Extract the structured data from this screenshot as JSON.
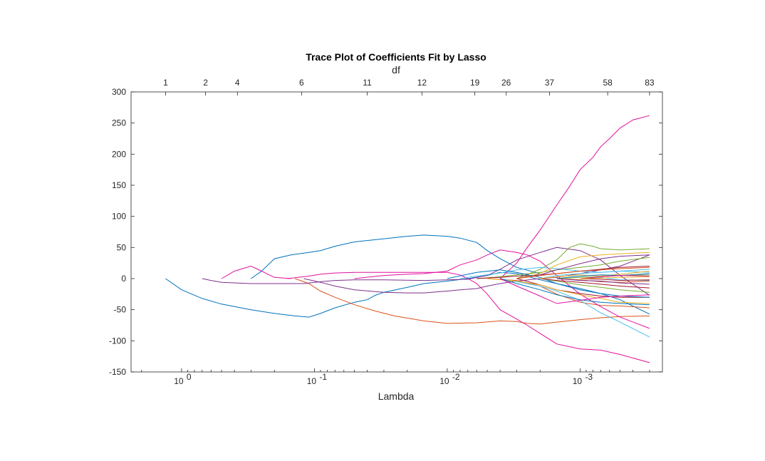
{
  "chart_data": {
    "type": "line",
    "title": "Trace Plot of Coefficients Fit by Lasso",
    "xlabel": "Lambda",
    "ylabel": "",
    "top_axis_label": "df",
    "x_scale": "log",
    "x_reversed": true,
    "xlim": [
      2.4,
      0.00024
    ],
    "ylim": [
      -150,
      300
    ],
    "grid": false,
    "legend": "none",
    "colors": {
      "blue": "#0072BD",
      "orange": "#D95319",
      "yellow": "#EDB120",
      "purple": "#7E2F8E",
      "green": "#77AC30",
      "cyan": "#4DBEEE",
      "red": "#A2142F",
      "magenta": "#E0119C"
    },
    "yticks": [
      {
        "value": 300,
        "label": "300"
      },
      {
        "value": 250,
        "label": "250"
      },
      {
        "value": 200,
        "label": "200"
      },
      {
        "value": 150,
        "label": "150"
      },
      {
        "value": 100,
        "label": "100"
      },
      {
        "value": 50,
        "label": "50"
      },
      {
        "value": 0,
        "label": "0"
      },
      {
        "value": -50,
        "label": "-50"
      },
      {
        "value": -100,
        "label": "-100"
      },
      {
        "value": -150,
        "label": "-150"
      }
    ],
    "xticks": [
      {
        "value": 1,
        "base": "10",
        "exp": "0"
      },
      {
        "value": 0.1,
        "base": "10",
        "exp": "-1"
      },
      {
        "value": 0.01,
        "base": "10",
        "exp": "-2"
      },
      {
        "value": 0.001,
        "base": "10",
        "exp": "-3"
      }
    ],
    "df_ticks": [
      {
        "lambda": 1.32,
        "label": "1"
      },
      {
        "lambda": 0.66,
        "label": "2"
      },
      {
        "lambda": 0.38,
        "label": "4"
      },
      {
        "lambda": 0.125,
        "label": "6"
      },
      {
        "lambda": 0.04,
        "label": "11"
      },
      {
        "lambda": 0.0155,
        "label": "12"
      },
      {
        "lambda": 0.0062,
        "label": "19"
      },
      {
        "lambda": 0.0036,
        "label": "26"
      },
      {
        "lambda": 0.0017,
        "label": "37"
      },
      {
        "lambda": 0.00062,
        "label": "58"
      },
      {
        "lambda": 0.0003,
        "label": "83"
      }
    ],
    "series": [
      {
        "color": "#0072BD",
        "x": [
          1.32,
          1.0,
          0.7,
          0.5,
          0.3,
          0.2,
          0.14,
          0.11,
          0.09,
          0.07,
          0.05,
          0.04,
          0.035,
          0.03,
          0.02,
          0.015,
          0.01,
          0.007,
          0.005,
          0.004,
          0.003,
          0.002,
          0.0015,
          0.001,
          0.0007,
          0.0005,
          0.0003
        ],
        "y": [
          0,
          -18,
          -32,
          -41,
          -50,
          -56,
          -60,
          -62,
          -56,
          -47,
          -38,
          -34,
          -27,
          -22,
          -14,
          -8,
          -4,
          0,
          5,
          10,
          8,
          -2,
          -8,
          -16,
          -24,
          -34,
          -57
        ]
      },
      {
        "color": "#0072BD",
        "x": [
          0.3,
          0.25,
          0.2,
          0.15,
          0.11,
          0.09,
          0.07,
          0.05,
          0.03,
          0.02,
          0.015,
          0.01,
          0.008,
          0.006,
          0.005,
          0.004,
          0.003,
          0.002
        ],
        "y": [
          0,
          12,
          32,
          38,
          42,
          45,
          52,
          59,
          64,
          68,
          70,
          68,
          65,
          58,
          45,
          32,
          18,
          8
        ]
      },
      {
        "color": "#D95319",
        "x": [
          0.14,
          0.11,
          0.09,
          0.07,
          0.05,
          0.035,
          0.025,
          0.015,
          0.01,
          0.006,
          0.004,
          0.003,
          0.0025,
          0.002,
          0.0015,
          0.001,
          0.0007,
          0.0005,
          0.0003
        ],
        "y": [
          0,
          -8,
          -20,
          -30,
          -42,
          -52,
          -60,
          -68,
          -72,
          -71,
          -68,
          -69,
          -72,
          -73,
          -70,
          -66,
          -63,
          -61,
          -60
        ]
      },
      {
        "color": "#D95319",
        "x": [
          0.005,
          0.003,
          0.002,
          0.0015,
          0.001,
          0.0007,
          0.0005,
          0.0003
        ],
        "y": [
          0,
          -3,
          -12,
          -25,
          -38,
          -43,
          -44,
          -47
        ]
      },
      {
        "color": "#E0119C",
        "x": [
          0.004,
          0.003,
          0.0025,
          0.002,
          0.0015,
          0.0012,
          0.001,
          0.0008,
          0.0007,
          0.0006,
          0.0005,
          0.0004,
          0.0003
        ],
        "y": [
          0,
          25,
          50,
          78,
          118,
          148,
          175,
          195,
          212,
          225,
          242,
          255,
          262
        ]
      },
      {
        "color": "#E0119C",
        "x": [
          0.16,
          0.11,
          0.09,
          0.07,
          0.05,
          0.03,
          0.02,
          0.015,
          0.01,
          0.008,
          0.007,
          0.006,
          0.005,
          0.004,
          0.003,
          0.0025,
          0.002,
          0.0015,
          0.001,
          0.0007,
          0.0005,
          0.0003
        ],
        "y": [
          0,
          4,
          7,
          9,
          10,
          10,
          10,
          10,
          10,
          6,
          0,
          -8,
          -25,
          -50,
          -65,
          -75,
          -88,
          -105,
          -113,
          -115,
          -122,
          -135
        ]
      },
      {
        "color": "#E0119C",
        "x": [
          0.5,
          0.4,
          0.3,
          0.25,
          0.2,
          0.15
        ],
        "y": [
          0,
          12,
          20,
          12,
          2,
          0
        ]
      },
      {
        "color": "#E0119C",
        "x": [
          0.05,
          0.03,
          0.02,
          0.015,
          0.01,
          0.008,
          0.006,
          0.005,
          0.004,
          0.003,
          0.0025,
          0.002,
          0.0015,
          0.001,
          0.0007,
          0.0005,
          0.0003
        ],
        "y": [
          0,
          5,
          7,
          8,
          12,
          22,
          30,
          38,
          46,
          42,
          38,
          28,
          5,
          -25,
          -45,
          -62,
          -80
        ]
      },
      {
        "color": "#7E2F8E",
        "x": [
          0.7,
          0.6,
          0.5,
          0.3,
          0.2,
          0.12,
          0.09,
          0.07,
          0.05,
          0.03,
          0.015,
          0.01,
          0.007,
          0.005,
          0.004,
          0.003,
          0.002,
          0.0015,
          0.001,
          0.0007,
          0.0005,
          0.0003
        ],
        "y": [
          0,
          -3,
          -6,
          -8,
          -8,
          -8,
          -5,
          -3,
          -2,
          -2,
          -3,
          -2,
          -1,
          5,
          15,
          30,
          42,
          50,
          45,
          30,
          5,
          -27
        ]
      },
      {
        "color": "#7E2F8E",
        "x": [
          0.12,
          0.09,
          0.07,
          0.05,
          0.03,
          0.02,
          0.015,
          0.01,
          0.008,
          0.006,
          0.005,
          0.004,
          0.003,
          0.002,
          0.0015,
          0.001,
          0.0007,
          0.0005,
          0.0003
        ],
        "y": [
          0,
          -6,
          -12,
          -18,
          -22,
          -23,
          -23,
          -20,
          -18,
          -16,
          -12,
          -8,
          -4,
          0,
          2,
          8,
          14,
          20,
          38
        ]
      },
      {
        "color": "#77AC30",
        "x": [
          0.003,
          0.002,
          0.0015,
          0.0012,
          0.001,
          0.0008,
          0.0007,
          0.0005,
          0.0003
        ],
        "y": [
          0,
          15,
          30,
          50,
          56,
          52,
          48,
          46,
          48
        ]
      },
      {
        "color": "#77AC30",
        "x": [
          0.006,
          0.004,
          0.003,
          0.002,
          0.0015,
          0.001,
          0.0007,
          0.0005,
          0.0003
        ],
        "y": [
          0,
          3,
          6,
          10,
          14,
          18,
          22,
          28,
          34
        ]
      },
      {
        "color": "#4DBEEE",
        "x": [
          0.004,
          0.003,
          0.002,
          0.0015,
          0.001,
          0.0007,
          0.0005,
          0.0003
        ],
        "y": [
          0,
          -5,
          -12,
          -20,
          -35,
          -55,
          -70,
          -94
        ]
      },
      {
        "color": "#4DBEEE",
        "x": [
          0.008,
          0.006,
          0.004,
          0.003,
          0.002,
          0.0015,
          0.001,
          0.0007,
          0.0005,
          0.0003
        ],
        "y": [
          0,
          4,
          9,
          14,
          18,
          16,
          12,
          10,
          12,
          15
        ]
      },
      {
        "color": "#A2142F",
        "x": [
          0.003,
          0.002,
          0.0015,
          0.001,
          0.0007,
          0.0005,
          0.0003
        ],
        "y": [
          0,
          -10,
          -18,
          -24,
          -28,
          -30,
          -30
        ]
      },
      {
        "color": "#A2142F",
        "x": [
          0.006,
          0.004,
          0.003,
          0.002,
          0.0015,
          0.001,
          0.0007,
          0.0005,
          0.0003
        ],
        "y": [
          0,
          2,
          4,
          6,
          8,
          12,
          15,
          18,
          20
        ]
      },
      {
        "color": "#EDB120",
        "x": [
          0.003,
          0.002,
          0.0015,
          0.001,
          0.0007,
          0.0005,
          0.0003
        ],
        "y": [
          0,
          8,
          22,
          35,
          38,
          40,
          42
        ]
      },
      {
        "color": "#EDB120",
        "x": [
          0.005,
          0.003,
          0.002,
          0.0015,
          0.001,
          0.0007,
          0.0005,
          0.0003
        ],
        "y": [
          0,
          -4,
          -10,
          -18,
          -26,
          -32,
          -38,
          -40
        ]
      },
      {
        "color": "#0072BD",
        "x": [
          0.01,
          0.006,
          0.004,
          0.003,
          0.002,
          0.0015,
          0.001,
          0.0007,
          0.0005,
          0.0003
        ],
        "y": [
          0,
          10,
          14,
          10,
          2,
          -8,
          -18,
          -24,
          -28,
          -30
        ]
      },
      {
        "color": "#0072BD",
        "x": [
          0.004,
          0.003,
          0.002,
          0.0015,
          0.001,
          0.0007,
          0.0005,
          0.0003
        ],
        "y": [
          0,
          -8,
          -18,
          -26,
          -34,
          -38,
          -40,
          -42
        ]
      },
      {
        "color": "#7E2F8E",
        "x": [
          0.003,
          0.002,
          0.0015,
          0.001,
          0.0007,
          0.0005,
          0.0003
        ],
        "y": [
          0,
          6,
          14,
          24,
          32,
          36,
          38
        ]
      },
      {
        "color": "#E0119C",
        "x": [
          0.004,
          0.003,
          0.002,
          0.0015,
          0.001,
          0.0007,
          0.0005,
          0.0003
        ],
        "y": [
          0,
          -12,
          -28,
          -40,
          -35,
          -30,
          -28,
          -26
        ]
      },
      {
        "color": "#D95319",
        "x": [
          0.003,
          0.002,
          0.0015,
          0.001,
          0.0007,
          0.0005,
          0.0003
        ],
        "y": [
          0,
          5,
          8,
          12,
          14,
          16,
          18
        ]
      },
      {
        "color": "#77AC30",
        "x": [
          0.002,
          0.0015,
          0.001,
          0.0007,
          0.0005,
          0.0003
        ],
        "y": [
          0,
          -4,
          -10,
          -14,
          -18,
          -22
        ]
      },
      {
        "color": "#4DBEEE",
        "x": [
          0.002,
          0.0015,
          0.001,
          0.0007,
          0.0005,
          0.0003
        ],
        "y": [
          0,
          5,
          8,
          10,
          12,
          10
        ]
      },
      {
        "color": "#A2142F",
        "x": [
          0.002,
          0.0015,
          0.001,
          0.0007,
          0.0005,
          0.0003
        ],
        "y": [
          0,
          -3,
          -6,
          -9,
          -12,
          -15
        ]
      },
      {
        "color": "#EDB120",
        "x": [
          0.002,
          0.0015,
          0.001,
          0.0007,
          0.0005,
          0.0003
        ],
        "y": [
          0,
          3,
          6,
          4,
          7,
          12
        ]
      },
      {
        "color": "#0072BD",
        "x": [
          0.0015,
          0.001,
          0.0007,
          0.0005,
          0.0003
        ],
        "y": [
          0,
          4,
          6,
          5,
          8
        ]
      },
      {
        "color": "#D95319",
        "x": [
          0.0015,
          0.001,
          0.0007,
          0.0005,
          0.0003
        ],
        "y": [
          0,
          -2,
          -5,
          -6,
          -4
        ]
      },
      {
        "color": "#77AC30",
        "x": [
          0.0015,
          0.001,
          0.0007,
          0.0005,
          0.0003
        ],
        "y": [
          0,
          2,
          3,
          5,
          6
        ]
      },
      {
        "color": "#7E2F8E",
        "x": [
          0.0015,
          0.001,
          0.0007,
          0.0005,
          0.0003
        ],
        "y": [
          0,
          -3,
          -4,
          -7,
          -9
        ]
      },
      {
        "color": "#4DBEEE",
        "x": [
          0.001,
          0.0007,
          0.0005,
          0.0003
        ],
        "y": [
          0,
          2,
          -2,
          -3
        ]
      },
      {
        "color": "#E0119C",
        "x": [
          0.001,
          0.0007,
          0.0005,
          0.0003
        ],
        "y": [
          0,
          3,
          5,
          4
        ]
      },
      {
        "color": "#A2142F",
        "x": [
          0.001,
          0.0007,
          0.0005,
          0.0003
        ],
        "y": [
          0,
          -1,
          -3,
          -2
        ]
      },
      {
        "color": "#EDB120",
        "x": [
          0.001,
          0.0007,
          0.0005,
          0.0003
        ],
        "y": [
          0,
          1,
          2,
          3
        ]
      }
    ]
  }
}
